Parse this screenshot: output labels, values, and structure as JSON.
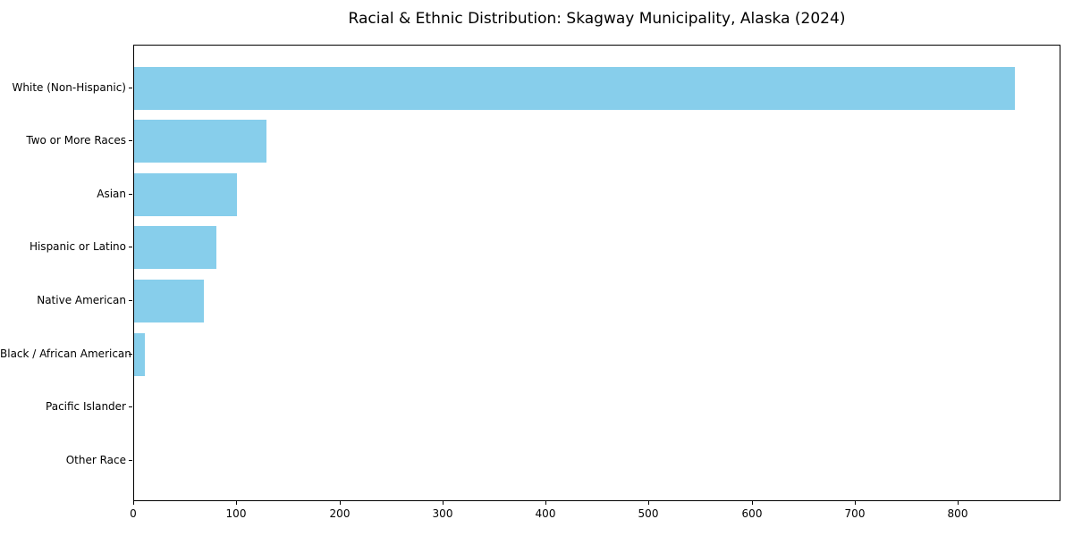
{
  "title": "Racial & Ethnic Distribution: Skagway Municipality, Alaska (2024)",
  "chart_data": {
    "type": "bar",
    "orientation": "horizontal",
    "title": "Racial & Ethnic Distribution: Skagway Municipality, Alaska (2024)",
    "categories": [
      "White (Non-Hispanic)",
      "Two or More Races",
      "Asian",
      "Hispanic or Latino",
      "Native American",
      "Black / African American",
      "Pacific Islander",
      "Other Race"
    ],
    "values": [
      855,
      128,
      100,
      80,
      68,
      10,
      0,
      0
    ],
    "xlabel": "",
    "ylabel": "",
    "xlim": [
      0,
      898
    ],
    "xticks": [
      0,
      100,
      200,
      300,
      400,
      500,
      600,
      700,
      800
    ],
    "bar_color": "#87CEEB",
    "axis_color": "#000000",
    "grid": false,
    "legend": null
  }
}
